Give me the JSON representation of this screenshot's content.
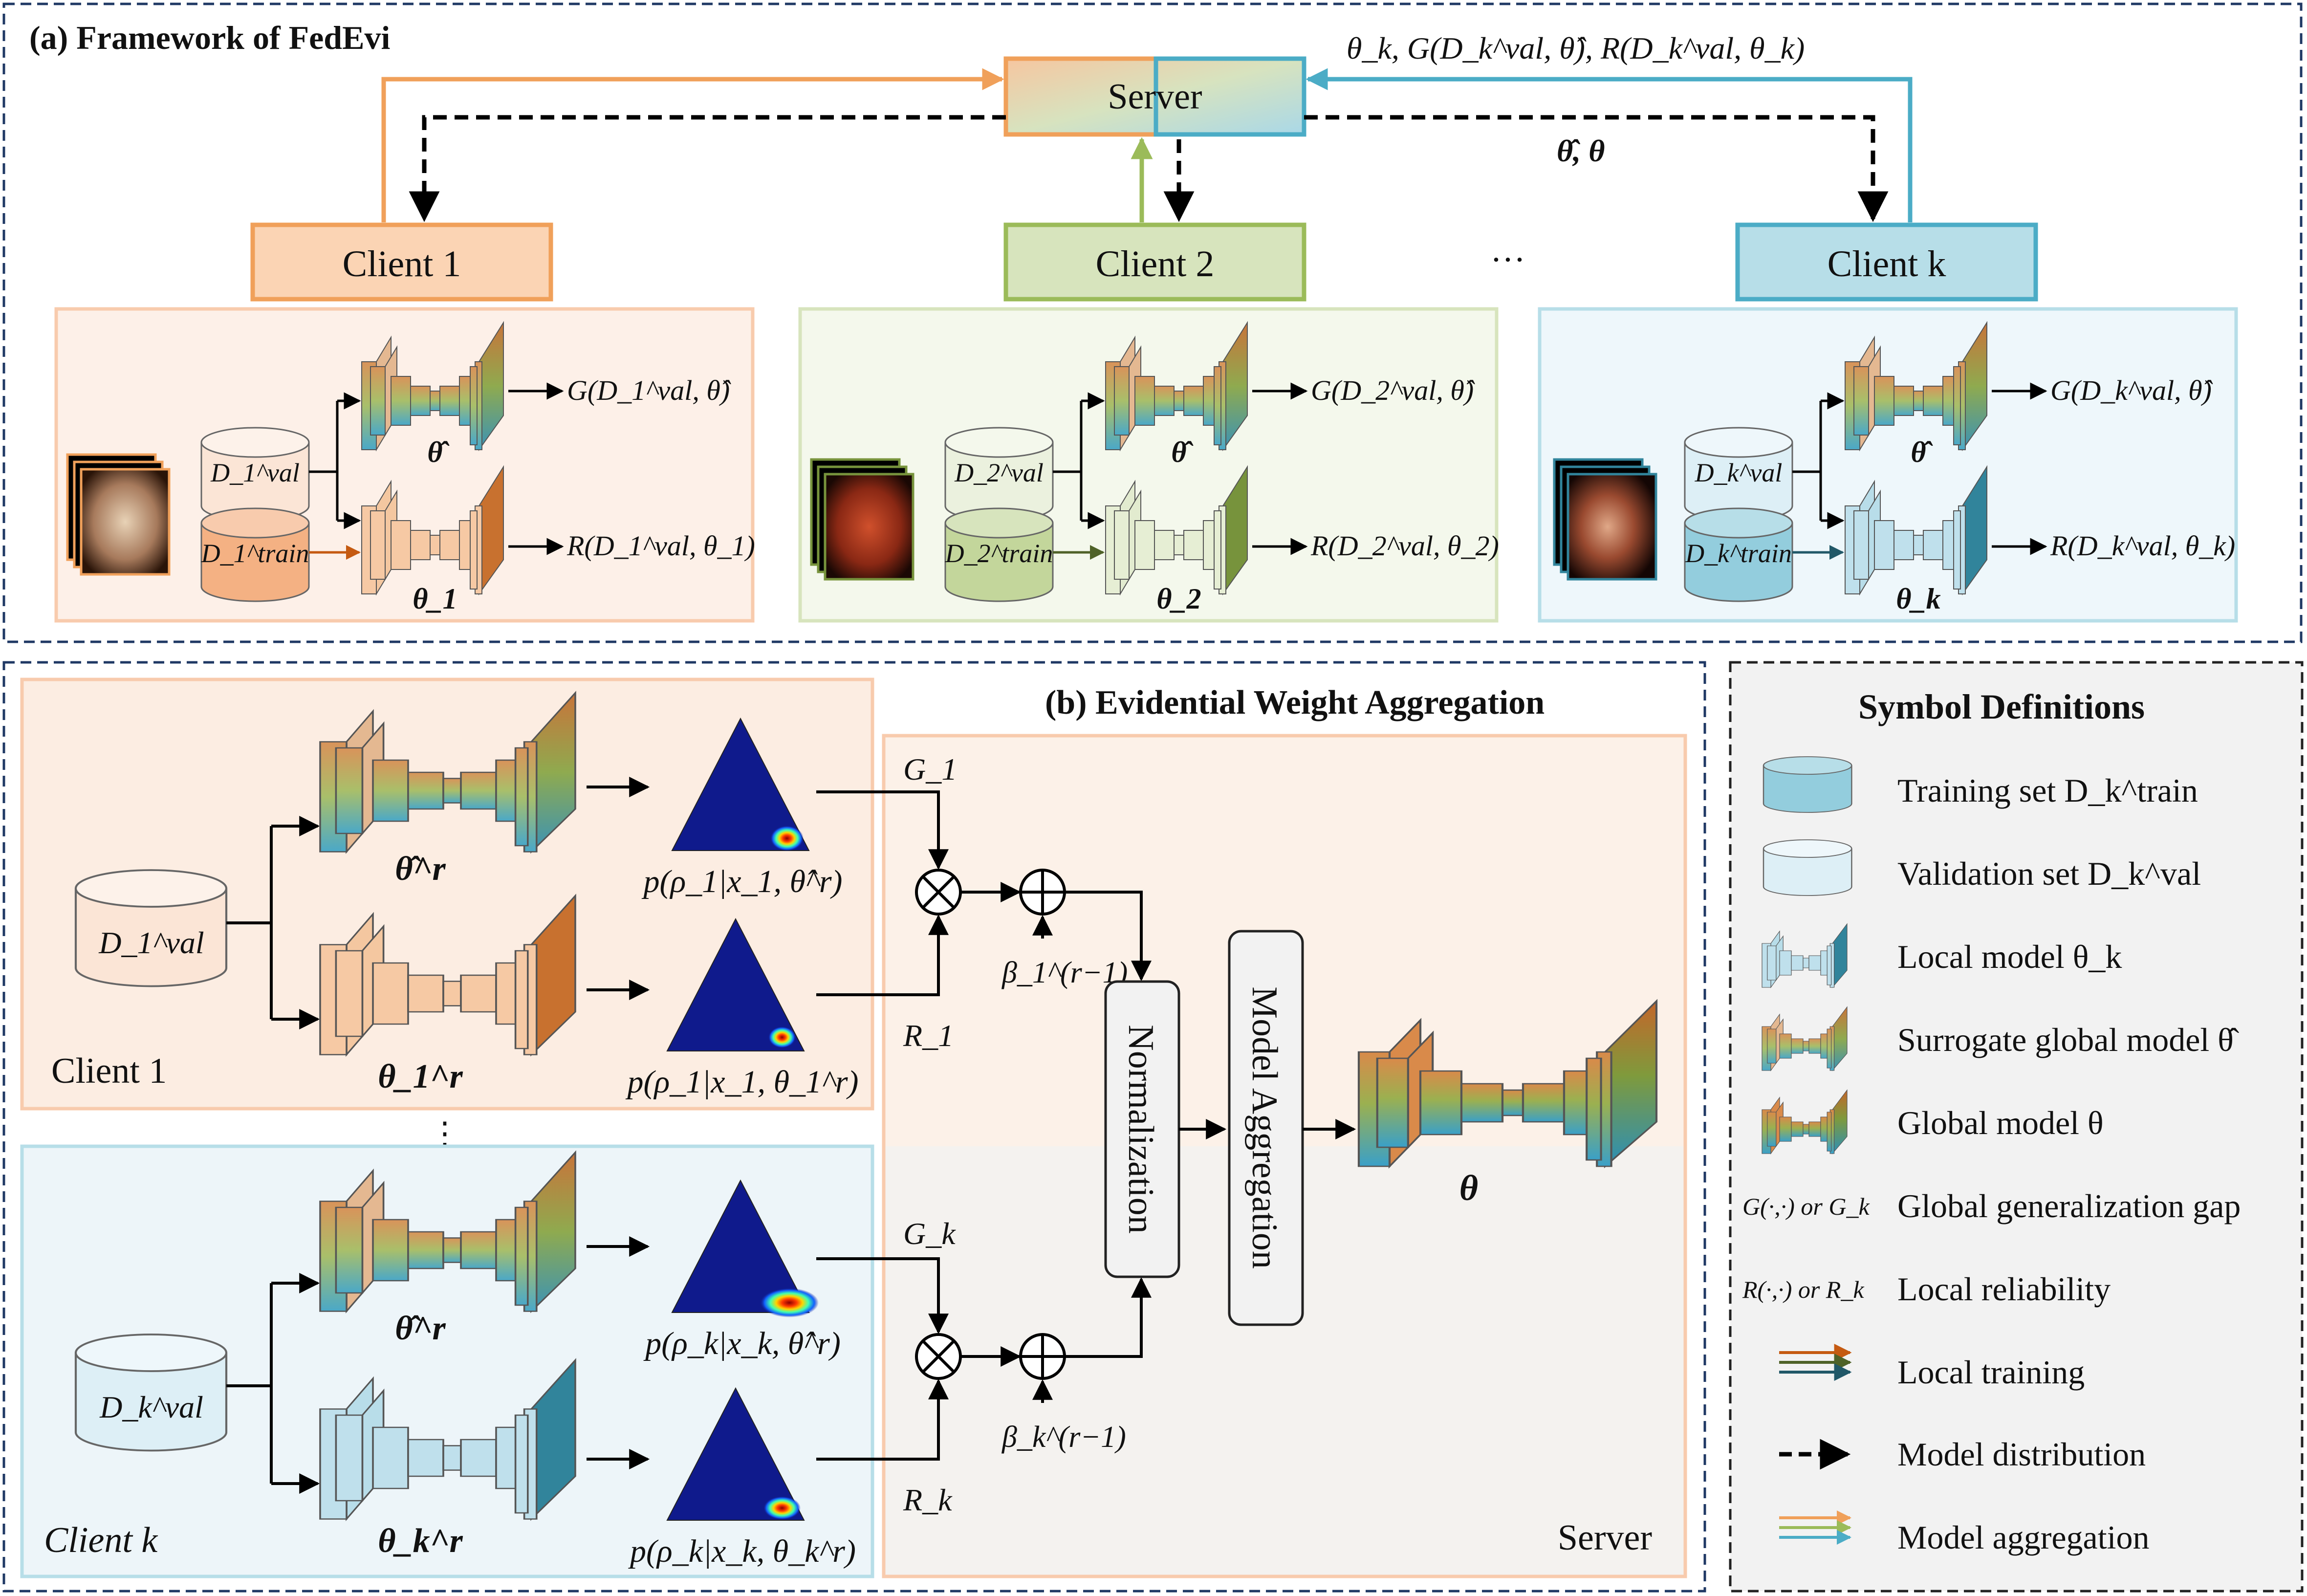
{
  "panel_a": {
    "title": "(a) Framework of FedEvi",
    "server_label": "Server",
    "upload_label": "θ_k, G(D_k^val, θ̂), R(D_k^val, θ_k)",
    "download_label": "θ̂, θ",
    "ellipsis": "···",
    "clients": [
      {
        "label": "Client 1",
        "val": "D_1^val",
        "train": "D_1^train",
        "theta": "θ_1",
        "surrogate": "θ̂",
        "g_out": "G(D_1^val, θ̂)",
        "r_out": "R(D_1^val, θ_1)"
      },
      {
        "label": "Client 2",
        "val": "D_2^val",
        "train": "D_2^train",
        "theta": "θ_2",
        "surrogate": "θ̂",
        "g_out": "G(D_2^val, θ̂)",
        "r_out": "R(D_2^val, θ_2)"
      },
      {
        "label": "Client k",
        "val": "D_k^val",
        "train": "D_k^train",
        "theta": "θ_k",
        "surrogate": "θ̂",
        "g_out": "G(D_k^val, θ̂)",
        "r_out": "R(D_k^val, θ_k)"
      }
    ]
  },
  "panel_b": {
    "title": "(b) Evidential Weight Aggregation",
    "client1_label": "Client 1",
    "clientk_label": "Client k",
    "server_label": "Server",
    "vdots": "⋮",
    "val1": "D_1^val",
    "valk": "D_k^val",
    "surrogate_r": "θ̂^r",
    "theta1_r": "θ_1^r",
    "thetak_r": "θ_k^r",
    "p1_surr": "p(ρ_1|x_1, θ̂^r)",
    "p1_local": "p(ρ_1|x_1, θ_1^r)",
    "pk_surr": "p(ρ_k|x_k, θ̂^r)",
    "pk_local": "p(ρ_k|x_k, θ_k^r)",
    "g1": "G_1",
    "r1": "R_1",
    "gk": "G_k",
    "rk": "R_k",
    "beta1": "β_1^(r−1)",
    "betak": "β_k^(r−1)",
    "normalization": "Normalization",
    "aggregation": "Model Aggregation",
    "global_theta": "θ"
  },
  "legend": {
    "title": "Symbol Definitions",
    "items": [
      {
        "symbol": "cylinder-dark",
        "label": "Training set D_k^train"
      },
      {
        "symbol": "cylinder-light",
        "label": "Validation set D_k^val"
      },
      {
        "symbol": "net-local",
        "label": "Local model θ_k"
      },
      {
        "symbol": "net-surrogate",
        "label": "Surrogate global model θ̂"
      },
      {
        "symbol": "net-global",
        "label": "Global model θ"
      },
      {
        "symbol": "G(·,·) or G_k",
        "label": "Global generalization gap"
      },
      {
        "symbol": "R(·,·) or R_k",
        "label": "Local reliability"
      },
      {
        "symbol": "arrows-local",
        "label": "Local training"
      },
      {
        "symbol": "arrow-dashed",
        "label": "Model distribution"
      },
      {
        "symbol": "arrows-agg",
        "label": "Model aggregation"
      }
    ]
  },
  "colors": {
    "client1": "#f0a05a",
    "client2": "#9bbb59",
    "clientk": "#4bacc6",
    "border_dark": "#1f3864"
  }
}
